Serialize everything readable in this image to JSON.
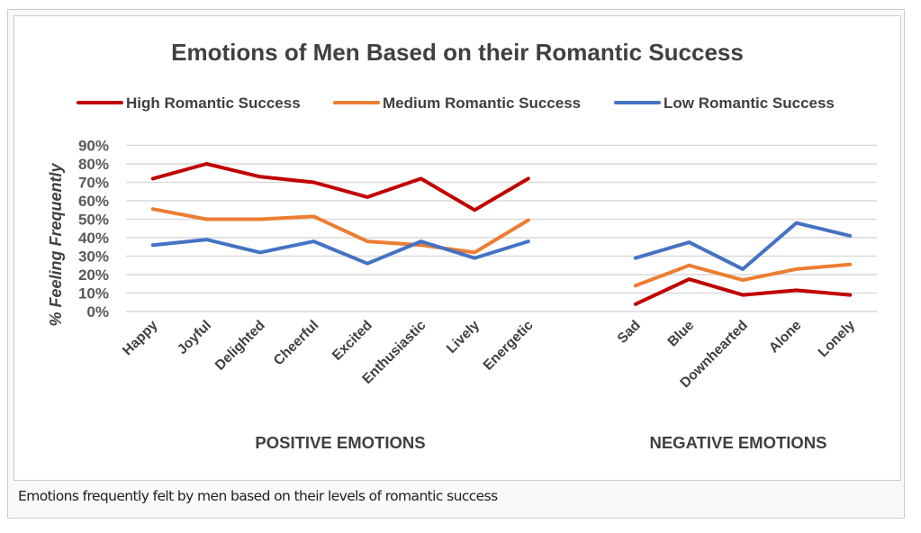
{
  "figure": {
    "caption": "Emotions frequently felt by men based on their levels of romantic success"
  },
  "chart_data": {
    "type": "line",
    "title": "Emotions of Men Based on their Romantic Success",
    "xlabel_groups": [
      "POSITIVE EMOTIONS",
      "NEGATIVE EMOTIONS"
    ],
    "ylabel": "% Feeling Frequently",
    "ylim": [
      0,
      90
    ],
    "yticks": [
      "0%",
      "10%",
      "20%",
      "30%",
      "40%",
      "50%",
      "60%",
      "70%",
      "80%",
      "90%"
    ],
    "grid": true,
    "legend_position": "top",
    "groups": [
      {
        "name": "POSITIVE EMOTIONS",
        "categories": [
          "Happy",
          "Joyful",
          "Delighted",
          "Cheerful",
          "Excited",
          "Enthusiastic",
          "Lively",
          "Energetic"
        ]
      },
      {
        "name": "NEGATIVE EMOTIONS",
        "categories": [
          "Sad",
          "Blue",
          "Downhearted",
          "Alone",
          "Lonely"
        ]
      }
    ],
    "series": [
      {
        "name": "High Romantic Success",
        "color": "#c00000",
        "values": [
          [
            72,
            80,
            73,
            70,
            62,
            72,
            55,
            72
          ],
          [
            4,
            17.5,
            9,
            11.5,
            9
          ]
        ]
      },
      {
        "name": "Medium Romantic Success",
        "color": "#ed7d31",
        "values": [
          [
            55.5,
            50,
            50,
            51.5,
            38,
            36,
            32,
            49.5
          ],
          [
            14,
            25,
            17,
            23,
            25.5
          ]
        ]
      },
      {
        "name": "Low Romantic Success",
        "color": "#4472c4",
        "values": [
          [
            36,
            39,
            32,
            38,
            26,
            38,
            29,
            38
          ],
          [
            29,
            37.5,
            23,
            48,
            41
          ]
        ]
      }
    ]
  }
}
